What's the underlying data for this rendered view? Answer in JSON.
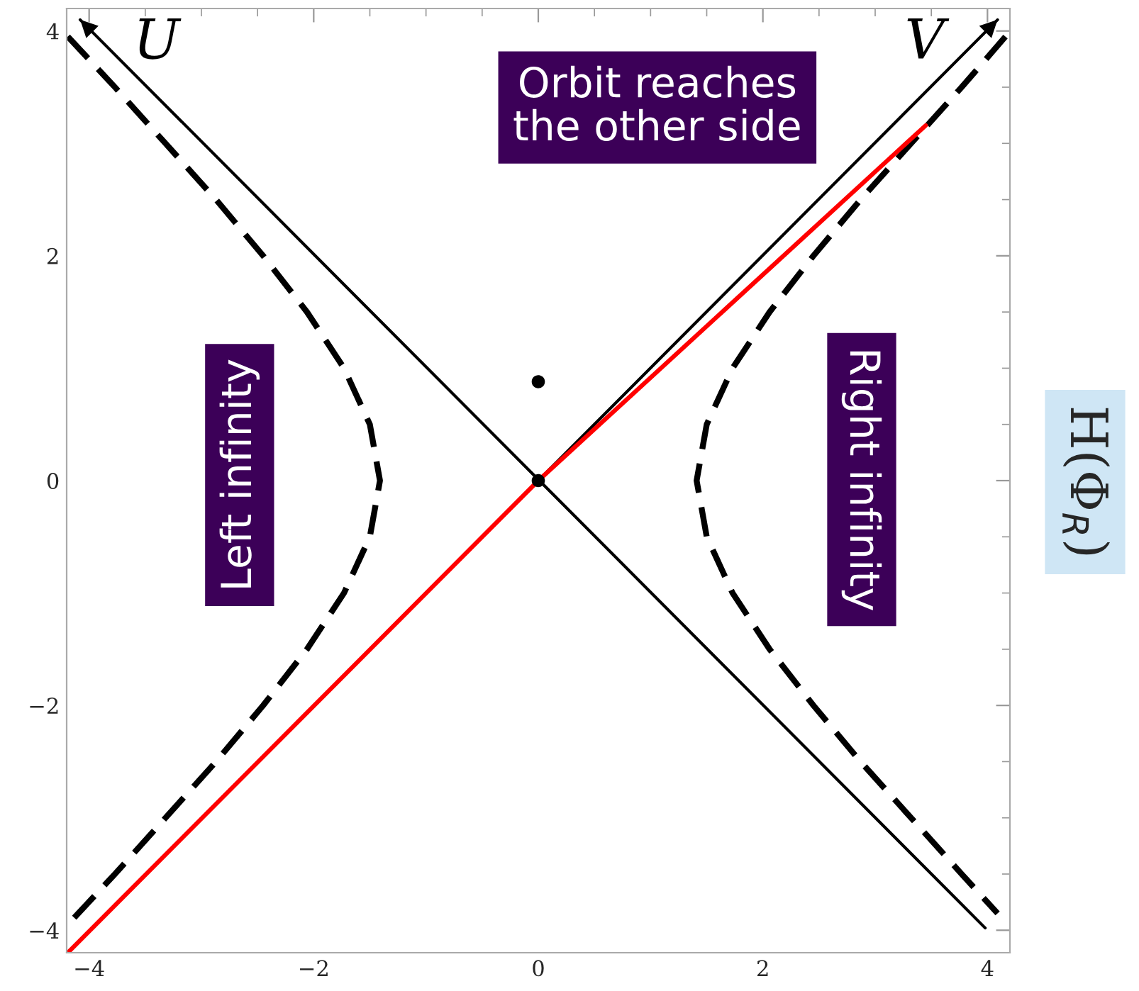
{
  "chart_data": {
    "type": "line",
    "annotations": [
      "Orbit reaches\nthe other side",
      "Left infinity",
      "Right infinity",
      "U",
      "V",
      "H(Φ$_{R}$)"
    ],
    "xlim": [
      -4.2,
      4.2
    ],
    "ylim": [
      -4.2,
      4.2
    ],
    "xticks": [
      {
        "value": -4,
        "label": "−4"
      },
      {
        "value": -3.5,
        "label": null
      },
      {
        "value": -3,
        "label": null
      },
      {
        "value": -2.5,
        "label": null
      },
      {
        "value": -2,
        "label": "−2"
      },
      {
        "value": -1.5,
        "label": null
      },
      {
        "value": -1,
        "label": null
      },
      {
        "value": -0.5,
        "label": null
      },
      0,
      {
        "value": 0.5,
        "label": null
      },
      {
        "value": 1,
        "label": null
      },
      {
        "value": 1.5,
        "label": null
      },
      2,
      {
        "value": 2.5,
        "label": null
      },
      {
        "value": 3,
        "label": null
      },
      {
        "value": 3.5,
        "label": null
      },
      4
    ],
    "yticks": [
      {
        "value": -4,
        "label": "−4"
      },
      {
        "value": -3.5,
        "label": null
      },
      {
        "value": -3,
        "label": null
      },
      {
        "value": -2.5,
        "label": null
      },
      {
        "value": -2,
        "label": "−2"
      },
      {
        "value": -1.5,
        "label": null
      },
      {
        "value": -1,
        "label": null
      },
      {
        "value": -0.5,
        "label": null
      },
      0,
      {
        "value": 0.5,
        "label": null
      },
      {
        "value": 1,
        "label": null
      },
      {
        "value": 1.5,
        "label": null
      },
      2,
      {
        "value": 2.5,
        "label": null
      },
      {
        "value": 3,
        "label": null
      },
      {
        "value": 3.5,
        "label": null
      },
      4
    ],
    "grid": false,
    "legend": false,
    "series": [
      {
        "color": "#000000",
        "line_style": "solid",
        "x": [
          3.98,
          -4.08
        ],
        "values": [
          -3.98,
          4.1
        ]
      },
      {
        "color": "#000000",
        "line_style": "solid",
        "x": [
          0,
          4.09
        ],
        "values": [
          0,
          4.1
        ]
      },
      {
        "color": "#000000",
        "line_style": "dashed",
        "x": [
          -4.19,
          -3.77,
          -3.32,
          -2.87,
          -2.45,
          -2.06,
          -1.73,
          -1.5,
          -1.41,
          -1.5,
          -1.73,
          -2.06,
          -2.45,
          -2.87,
          -3.32,
          -3.77,
          -4.19
        ],
        "values": [
          3.95,
          3.5,
          3,
          2.5,
          2,
          1.5,
          1,
          0.5,
          0,
          -0.5,
          -1,
          -1.5,
          -2,
          -2.5,
          -3,
          -3.5,
          -3.95
        ]
      },
      {
        "color": "#000000",
        "line_style": "dashed",
        "x": [
          4.16,
          3.77,
          3.32,
          2.87,
          2.45,
          2.06,
          1.73,
          1.5,
          1.41,
          1.5,
          1.73,
          2.06,
          2.45,
          2.87,
          3.32,
          3.77,
          4.09
        ],
        "values": [
          3.95,
          3.5,
          3,
          2.5,
          2,
          1.5,
          1,
          0.5,
          0,
          -0.5,
          -1,
          -1.5,
          -2,
          -2.5,
          -3,
          -3.5,
          -3.85
        ]
      },
      {
        "color": "#ff0000",
        "line_style": "solid",
        "x": [
          -4.19,
          0,
          3.45
        ],
        "values": [
          -4.2,
          0,
          3.16
        ]
      },
      {
        "type": "scatter",
        "color": "#000000",
        "marker": "circle",
        "x": [
          0,
          0
        ],
        "values": [
          0.88,
          0
        ]
      }
    ]
  }
}
